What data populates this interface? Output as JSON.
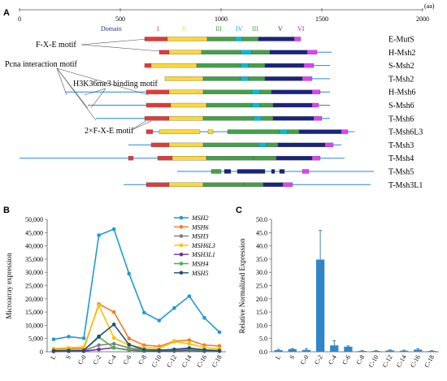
{
  "panel_a": {
    "label": "A",
    "scale_ticks": [
      "0",
      "500",
      "1000",
      "1500",
      "2000"
    ],
    "scale_unit": "(aa)",
    "domain_title": "Domain",
    "domain_labels": [
      {
        "text": "I",
        "color": "#e53935"
      },
      {
        "text": "II",
        "color": "#fdd835"
      },
      {
        "text": "III",
        "color": "#43a047"
      },
      {
        "text": "IV",
        "color": "#00bcd4"
      },
      {
        "text": "III",
        "color": "#43a047"
      },
      {
        "text": "V",
        "color": "#283593"
      },
      {
        "text": "VI",
        "color": "#d81b9b"
      }
    ],
    "motifs": {
      "fxe": "F-X-E motif",
      "pcna": "Pcna interaction motif",
      "h3k36": "H3K36me3 binding motif",
      "fxe2": "2×F-X-E motif"
    },
    "proteins": [
      "E-MutS",
      "H-Msh2",
      "S-Msh2",
      "T-Msh2",
      "H-Msh6",
      "S-Msh6",
      "T-Msh6",
      "T-Msh6L3",
      "T-Msh3",
      "T-Msh4",
      "T-Msh5",
      "T-Msh3L1"
    ],
    "colors": {
      "I": "#e53935",
      "II": "#fdd835",
      "III": "#43a047",
      "IV": "#00bcd4",
      "V": "#1a237e",
      "VI": "#e040fb",
      "line": "#1e88e5"
    }
  },
  "panel_b": {
    "label": "B",
    "chart_data": {
      "type": "line",
      "categories": [
        "L",
        "S",
        "C-0",
        "C-2",
        "C-4",
        "C-6",
        "C-8",
        "C-10",
        "C-12",
        "C-14",
        "C-16",
        "C-18"
      ],
      "ylabel": "Microarray expression",
      "ylim": [
        0,
        50000
      ],
      "yticks": [
        "0",
        "5,000",
        "10,000",
        "15,000",
        "20,000",
        "25,000",
        "30,000",
        "35,000",
        "40,000",
        "45,000",
        "50,000"
      ],
      "series": [
        {
          "name": "MSH2",
          "color": "#1e9ad6",
          "values": [
            4700,
            5700,
            5100,
            44000,
            46300,
            29500,
            14800,
            11800,
            16500,
            21000,
            12800,
            7400
          ]
        },
        {
          "name": "MSH6",
          "color": "#f47d20",
          "values": [
            1000,
            1200,
            1200,
            18000,
            15000,
            5000,
            2500,
            2000,
            4000,
            4400,
            2500,
            2200
          ]
        },
        {
          "name": "MSH3",
          "color": "#7f7f7f",
          "values": [
            300,
            400,
            400,
            2500,
            3000,
            1500,
            700,
            600,
            800,
            900,
            600,
            500
          ]
        },
        {
          "name": "MSH6L3",
          "color": "#ffc000",
          "values": [
            1200,
            1500,
            1800,
            17500,
            5200,
            2500,
            1500,
            1300,
            3800,
            3000,
            1500,
            1200
          ]
        },
        {
          "name": "MSH3L1",
          "color": "#7030a0",
          "values": [
            100,
            200,
            200,
            900,
            1500,
            600,
            300,
            200,
            300,
            500,
            200,
            200
          ]
        },
        {
          "name": "MSH4",
          "color": "#4caf50",
          "values": [
            400,
            500,
            500,
            5500,
            1500,
            800,
            600,
            500,
            700,
            900,
            500,
            400
          ]
        },
        {
          "name": "MSH5",
          "color": "#1f4e79",
          "values": [
            400,
            500,
            500,
            5800,
            10300,
            2700,
            800,
            600,
            900,
            1400,
            700,
            400
          ]
        }
      ]
    }
  },
  "panel_c": {
    "label": "C",
    "chart_data": {
      "type": "bar",
      "categories": [
        "L",
        "S",
        "C-0",
        "C-2",
        "C-4",
        "C-6",
        "C-8",
        "C-10",
        "C-12",
        "C-14",
        "C-16",
        "C-18"
      ],
      "values": [
        0.6,
        1.0,
        0.7,
        34.8,
        2.4,
        1.9,
        0.3,
        0.3,
        0.5,
        0.4,
        0.8,
        0.3
      ],
      "errors": [
        0.3,
        0.2,
        0.5,
        11.0,
        1.8,
        0.3,
        0.1,
        0.1,
        0.2,
        0.2,
        0.4,
        0.1
      ],
      "ylabel": "Relative Normalized Expression",
      "ylim": [
        0,
        50
      ],
      "yticks": [
        "0.0",
        "5.0",
        "10.0",
        "15.0",
        "20.0",
        "25.0",
        "30.0",
        "35.0",
        "40.0",
        "45.0",
        "50.0"
      ],
      "color": "#2e86c9"
    }
  }
}
